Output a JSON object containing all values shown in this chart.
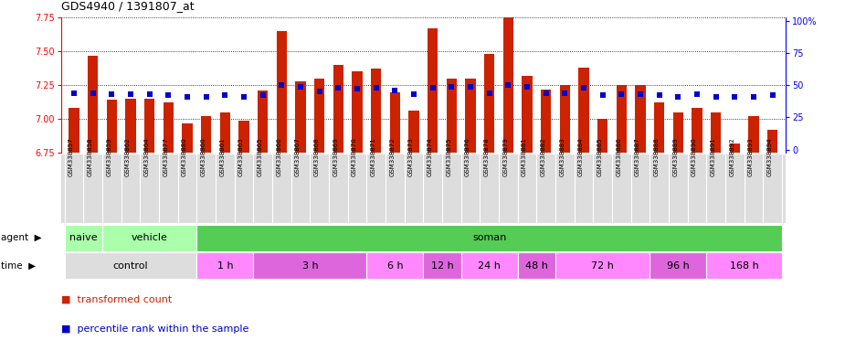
{
  "title": "GDS4940 / 1391807_at",
  "samples": [
    "GSM338857",
    "GSM338858",
    "GSM338859",
    "GSM338862",
    "GSM338864",
    "GSM338877",
    "GSM338880",
    "GSM338860",
    "GSM338861",
    "GSM338863",
    "GSM338865",
    "GSM338866",
    "GSM338867",
    "GSM338868",
    "GSM338869",
    "GSM338870",
    "GSM338871",
    "GSM338872",
    "GSM338873",
    "GSM338874",
    "GSM338875",
    "GSM338876",
    "GSM338878",
    "GSM338879",
    "GSM338881",
    "GSM338882",
    "GSM338883",
    "GSM338884",
    "GSM338885",
    "GSM338886",
    "GSM338887",
    "GSM338888",
    "GSM338889",
    "GSM338890",
    "GSM338891",
    "GSM338892",
    "GSM338893",
    "GSM338894"
  ],
  "transformed_count": [
    7.08,
    7.47,
    7.14,
    7.15,
    7.15,
    7.12,
    6.97,
    7.02,
    7.05,
    6.99,
    7.21,
    7.65,
    7.28,
    7.3,
    7.4,
    7.35,
    7.37,
    7.2,
    7.06,
    7.67,
    7.3,
    7.3,
    7.48,
    7.75,
    7.32,
    7.22,
    7.25,
    7.38,
    7.0,
    7.25,
    7.25,
    7.12,
    7.05,
    7.08,
    7.05,
    6.82,
    7.02,
    6.92
  ],
  "percentile_rank": [
    44,
    44,
    43,
    43,
    43,
    42,
    41,
    41,
    42,
    41,
    42,
    50,
    49,
    45,
    48,
    47,
    48,
    46,
    43,
    48,
    49,
    49,
    44,
    50,
    49,
    44,
    44,
    48,
    42,
    43,
    43,
    42,
    41,
    43,
    41,
    41,
    41,
    42
  ],
  "y_min": 6.75,
  "y_max": 7.75,
  "y_ticks": [
    6.75,
    7.0,
    7.25,
    7.5,
    7.75
  ],
  "y2_ticks": [
    0,
    25,
    50,
    75,
    100
  ],
  "bar_color": "#cc2200",
  "dot_color": "#0000cc",
  "sample_bg_color": "#dddddd",
  "agent_groups": [
    {
      "label": "naive",
      "start": 0,
      "end": 2,
      "color": "#aaffaa"
    },
    {
      "label": "vehicle",
      "start": 2,
      "end": 7,
      "color": "#aaffaa"
    },
    {
      "label": "soman",
      "start": 7,
      "end": 38,
      "color": "#55cc55"
    }
  ],
  "time_groups": [
    {
      "label": "control",
      "start": 0,
      "end": 7,
      "color": "#dddddd"
    },
    {
      "label": "1 h",
      "start": 7,
      "end": 10,
      "color": "#ff88ff"
    },
    {
      "label": "3 h",
      "start": 10,
      "end": 16,
      "color": "#dd66dd"
    },
    {
      "label": "6 h",
      "start": 16,
      "end": 19,
      "color": "#ff88ff"
    },
    {
      "label": "12 h",
      "start": 19,
      "end": 21,
      "color": "#dd66dd"
    },
    {
      "label": "24 h",
      "start": 21,
      "end": 24,
      "color": "#ff88ff"
    },
    {
      "label": "48 h",
      "start": 24,
      "end": 26,
      "color": "#dd66dd"
    },
    {
      "label": "72 h",
      "start": 26,
      "end": 31,
      "color": "#ff88ff"
    },
    {
      "label": "96 h",
      "start": 31,
      "end": 34,
      "color": "#dd66dd"
    },
    {
      "label": "168 h",
      "start": 34,
      "end": 38,
      "color": "#ff88ff"
    }
  ],
  "legend_bar_label": "transformed count",
  "legend_dot_label": "percentile rank within the sample",
  "agent_label": "agent",
  "time_label": "time"
}
